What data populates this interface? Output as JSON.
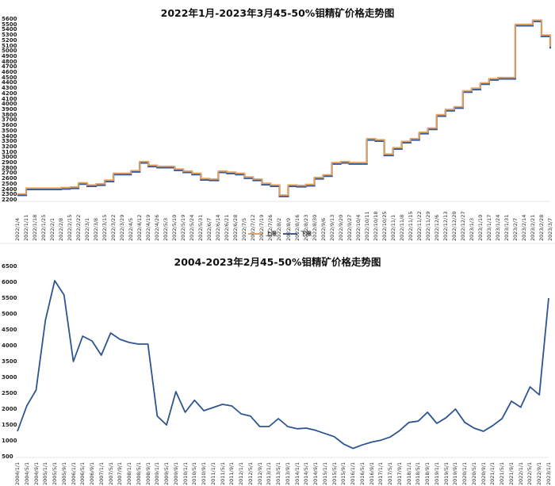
{
  "chart_data": [
    {
      "type": "line",
      "title": "2022年1月-2023年3月45-50%钼精矿价格走势图",
      "xlabel": "",
      "ylabel": "",
      "ylim": [
        2200,
        5600
      ],
      "yticks": [
        2200,
        2300,
        2400,
        2500,
        2600,
        2700,
        2800,
        2900,
        3000,
        3100,
        3200,
        3300,
        3400,
        3500,
        3600,
        3700,
        3800,
        3900,
        4000,
        4100,
        4200,
        4300,
        4400,
        4500,
        4600,
        4700,
        4800,
        4900,
        5000,
        5100,
        5200,
        5300,
        5400,
        5500,
        5600
      ],
      "grid": false,
      "legend_position": "bottom",
      "categories": [
        "2022/1/4",
        "2022/1/11",
        "2022/1/18",
        "2022/1/25",
        "2022/2/1",
        "2022/2/8",
        "2022/2/15",
        "2022/2/22",
        "2022/3/1",
        "2022/3/8",
        "2022/3/15",
        "2022/3/22",
        "2022/3/29",
        "2022/4/5",
        "2022/4/12",
        "2022/4/19",
        "2022/4/26",
        "2022/5/3",
        "2022/5/10",
        "2022/5/19",
        "2022/5/24",
        "2022/5/31",
        "2022/6/7",
        "2022/6/14",
        "2022/6/21",
        "2022/6/28",
        "2022/7/5",
        "2022/7/12",
        "2022/7/19",
        "2022/7/26",
        "2022/8/2",
        "2022/8/9",
        "2022/8/16",
        "2022/8/23",
        "2022/8/30",
        "2022/9/6",
        "2022/9/13",
        "2022/9/20",
        "2022/9/27",
        "2022/10/4",
        "2022/10/11",
        "2022/10/18",
        "2022/10/25",
        "2022/11/1",
        "2022/11/8",
        "2022/11/15",
        "2022/11/22",
        "2022/11/29",
        "2022/12/6",
        "2022/12/13",
        "2022/12/20",
        "2022/12/27",
        "2023/1/3",
        "2023/1/10",
        "2023/1/17",
        "2023/1/24",
        "2023/1/31",
        "2023/2/7",
        "2023/2/14",
        "2023/2/21",
        "2023/2/28",
        "2023/3/7"
      ],
      "series": [
        {
          "name": "上限",
          "color": "#e8a25a",
          "values": [
            2310,
            2420,
            2420,
            2420,
            2420,
            2430,
            2440,
            2520,
            2480,
            2500,
            2570,
            2700,
            2700,
            2750,
            2920,
            2850,
            2830,
            2830,
            2780,
            2740,
            2700,
            2600,
            2590,
            2740,
            2720,
            2700,
            2630,
            2590,
            2510,
            2480,
            2290,
            2480,
            2470,
            2490,
            2620,
            2670,
            2900,
            2920,
            2900,
            2900,
            3350,
            3330,
            3060,
            3180,
            3300,
            3350,
            3470,
            3550,
            3800,
            3900,
            3950,
            4250,
            4300,
            4400,
            4480,
            4500,
            4500,
            5500,
            5500,
            5580,
            5300,
            5080
          ]
        },
        {
          "name": "下限",
          "color": "#3a5a9a",
          "values": [
            2300,
            2410,
            2410,
            2410,
            2410,
            2420,
            2430,
            2510,
            2470,
            2490,
            2560,
            2690,
            2690,
            2740,
            2910,
            2840,
            2820,
            2820,
            2770,
            2730,
            2690,
            2590,
            2580,
            2730,
            2710,
            2690,
            2620,
            2580,
            2500,
            2470,
            2280,
            2470,
            2460,
            2480,
            2610,
            2660,
            2890,
            2910,
            2890,
            2890,
            3340,
            3320,
            3050,
            3170,
            3290,
            3340,
            3460,
            3540,
            3790,
            3890,
            3940,
            4240,
            4290,
            4390,
            4470,
            4490,
            4490,
            5490,
            5490,
            5570,
            5290,
            5060
          ]
        }
      ],
      "legend": [
        "上限",
        "下限"
      ]
    },
    {
      "type": "line",
      "title": "2004-2023年2月45-50%钼精矿价格走势图",
      "xlabel": "",
      "ylabel": "",
      "ylim": [
        500,
        6500
      ],
      "yticks": [
        500,
        1000,
        1500,
        2000,
        2500,
        3000,
        3500,
        4000,
        4500,
        5000,
        5500,
        6000,
        6500
      ],
      "grid": false,
      "categories": [
        "2004/1/1",
        "2004/5/1",
        "2004/9/1",
        "2005/1/1",
        "2005/5/1",
        "2005/9/1",
        "2006/1/1",
        "2006/5/1",
        "2006/9/1",
        "2007/1/1",
        "2007/5/1",
        "2007/9/1",
        "2008/1/1",
        "2008/5/1",
        "2008/9/1",
        "2009/1/1",
        "2009/5/1",
        "2009/9/1",
        "2010/1/1",
        "2010/5/1",
        "2010/9/1",
        "2011/1/1",
        "2011/5/1",
        "2011/9/1",
        "2012/1/1",
        "2012/5/1",
        "2012/9/1",
        "2013/1/1",
        "2013/5/1",
        "2013/9/1",
        "2014/1/1",
        "2014/5/1",
        "2014/9/1",
        "2015/1/1",
        "2015/5/1",
        "2015/9/1",
        "2016/1/1",
        "2016/5/1",
        "2016/9/1",
        "2017/1/1",
        "2017/5/1",
        "2017/9/1",
        "2018/1/1",
        "2018/5/1",
        "2018/9/1",
        "2019/1/1",
        "2019/5/1",
        "2019/9/1",
        "2020/1/1",
        "2020/5/1",
        "2020/9/1",
        "2021/1/1",
        "2021/5/1",
        "2021/9/1",
        "2022/1/1",
        "2022/5/1",
        "2022/9/1",
        "2023/1/1"
      ],
      "series": [
        {
          "name": "45-50%钼精矿价格",
          "color": "#2e5590",
          "values": [
            1300,
            2100,
            2600,
            4800,
            6050,
            5600,
            3500,
            4300,
            4150,
            3700,
            4400,
            4200,
            4100,
            4050,
            4050,
            1780,
            1500,
            2550,
            1900,
            2280,
            1950,
            2050,
            2150,
            2100,
            1850,
            1780,
            1450,
            1450,
            1700,
            1450,
            1380,
            1400,
            1330,
            1230,
            1130,
            900,
            760,
            870,
            960,
            1020,
            1120,
            1320,
            1580,
            1620,
            1900,
            1550,
            1730,
            2000,
            1580,
            1400,
            1300,
            1480,
            1700,
            2250,
            2060,
            2700,
            2450,
            5500
          ]
        }
      ]
    }
  ],
  "top": {
    "title": "2022年1月-2023年3月45-50%钼精矿价格走势图",
    "legend_upper": "上限",
    "legend_lower": "下限"
  },
  "bottom": {
    "title": "2004-2023年2月45-50%钼精矿价格走势图"
  }
}
